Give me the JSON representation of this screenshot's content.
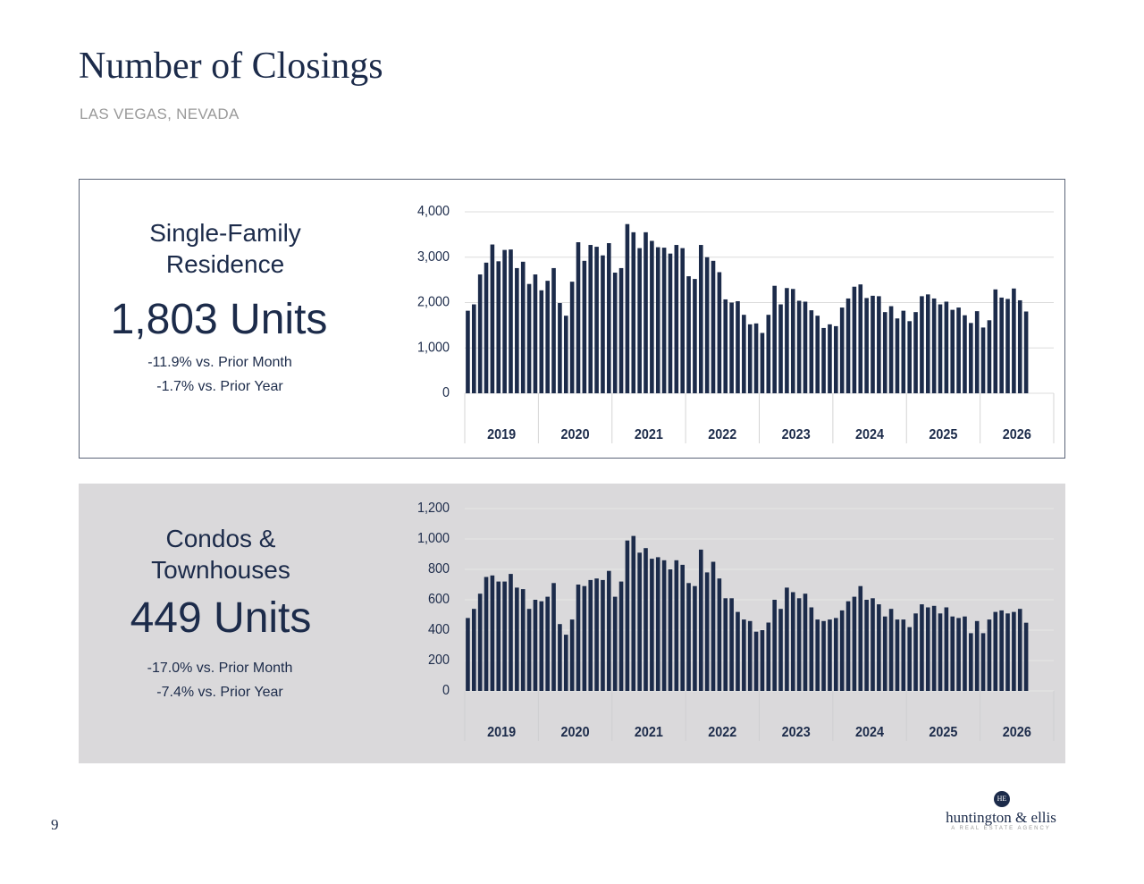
{
  "header": {
    "title": "Number of Closings",
    "subtitle": "LAS VEGAS, NEVADA"
  },
  "footer": {
    "page_number": "9",
    "monogram": "HE",
    "brand": "huntington & ellis",
    "tagline": "A REAL ESTATE AGENCY"
  },
  "panels": [
    {
      "title": "Single-Family Residence",
      "headline": "1,803 Units",
      "stats": [
        "-11.9% vs. Prior Month",
        "-1.7% vs. Prior Year"
      ]
    },
    {
      "title": "Condos & Townhouses",
      "headline": "449 Units",
      "stats": [
        "-17.0% vs. Prior Month",
        "-7.4% vs. Prior Year"
      ]
    }
  ],
  "chart_data": [
    {
      "type": "bar",
      "color": "#1c2b4a",
      "grid": true,
      "year_labels": [
        "2019",
        "2020",
        "2021",
        "2022",
        "2023",
        "2024",
        "2025",
        "2026"
      ],
      "values": [
        1820,
        1960,
        2620,
        2880,
        3280,
        2910,
        3160,
        3170,
        2760,
        2900,
        2410,
        2620,
        2270,
        2480,
        2760,
        1990,
        1710,
        2460,
        3330,
        2920,
        3270,
        3230,
        3040,
        3310,
        2660,
        2760,
        3730,
        3550,
        3200,
        3550,
        3360,
        3220,
        3210,
        3080,
        3270,
        3200,
        2580,
        2520,
        3270,
        3000,
        2920,
        2670,
        2070,
        2000,
        2030,
        1730,
        1520,
        1540,
        1330,
        1730,
        2370,
        1960,
        2320,
        2300,
        2040,
        2020,
        1830,
        1710,
        1440,
        1520,
        1480,
        1890,
        2090,
        2350,
        2400,
        2100,
        2150,
        2140,
        1790,
        1920,
        1650,
        1820,
        1590,
        1790,
        2140,
        2180,
        2090,
        1960,
        2020,
        1840,
        1890,
        1720,
        1550,
        1810,
        1450,
        1610,
        2290,
        2110,
        2080,
        2310,
        2050,
        1803
      ],
      "ylim": [
        0,
        4000
      ],
      "yticks": [
        0,
        {
          "value": 1000,
          "label": "1,000"
        },
        {
          "value": 2000,
          "label": "2,000"
        },
        {
          "value": 3000,
          "label": "3,000"
        },
        {
          "value": 4000,
          "label": "4,000"
        }
      ]
    },
    {
      "type": "bar",
      "color": "#1c2b4a",
      "grid": true,
      "year_labels": [
        "2019",
        "2020",
        "2021",
        "2022",
        "2023",
        "2024",
        "2025",
        "2026"
      ],
      "values": [
        480,
        540,
        640,
        750,
        760,
        720,
        720,
        770,
        680,
        670,
        540,
        600,
        590,
        620,
        710,
        440,
        370,
        470,
        700,
        690,
        730,
        740,
        730,
        790,
        620,
        720,
        990,
        1020,
        910,
        940,
        870,
        880,
        860,
        800,
        860,
        830,
        710,
        690,
        930,
        780,
        850,
        740,
        610,
        610,
        520,
        470,
        460,
        390,
        400,
        450,
        600,
        540,
        680,
        650,
        610,
        640,
        550,
        470,
        460,
        470,
        480,
        530,
        590,
        620,
        690,
        600,
        610,
        570,
        490,
        540,
        470,
        470,
        420,
        510,
        570,
        550,
        560,
        510,
        550,
        490,
        480,
        490,
        380,
        460,
        380,
        470,
        520,
        530,
        510,
        520,
        540,
        449
      ],
      "ylim": [
        0,
        1200
      ],
      "yticks": [
        0,
        200,
        400,
        600,
        800,
        {
          "value": 1000,
          "label": "1,000"
        },
        {
          "value": 1200,
          "label": "1,200"
        }
      ]
    }
  ]
}
